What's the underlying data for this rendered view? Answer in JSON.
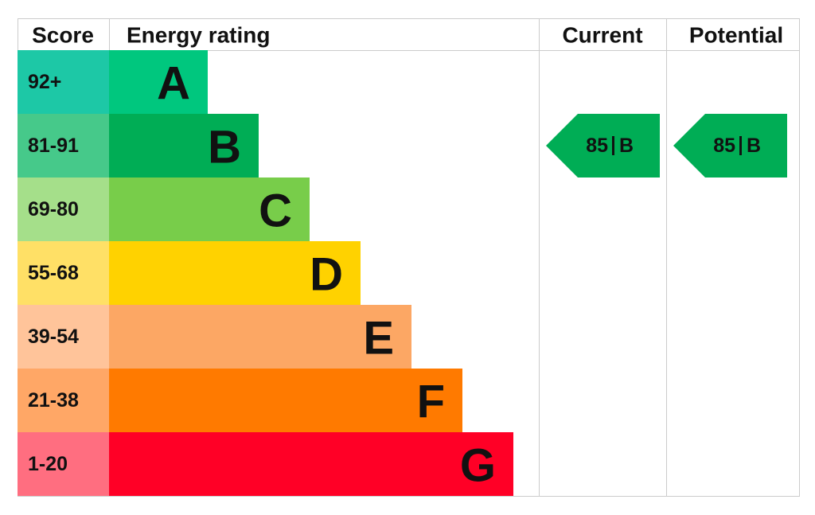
{
  "header": {
    "score": "Score",
    "rating": "Energy rating",
    "current": "Current",
    "potential": "Potential"
  },
  "bands": [
    {
      "score": "92+",
      "letter": "A",
      "color": "#00c77e",
      "score_color": "#1dc8a6"
    },
    {
      "score": "81-91",
      "letter": "B",
      "color": "#00ad55",
      "score_color": "#46c98a"
    },
    {
      "score": "69-80",
      "letter": "C",
      "color": "#78cd4a",
      "score_color": "#a5df8a"
    },
    {
      "score": "55-68",
      "letter": "D",
      "color": "#ffd200",
      "score_color": "#ffe066"
    },
    {
      "score": "39-54",
      "letter": "E",
      "color": "#fca764",
      "score_color": "#ffc49a"
    },
    {
      "score": "21-38",
      "letter": "F",
      "color": "#ff7a00",
      "score_color": "#ffa766"
    },
    {
      "score": "1-20",
      "letter": "G",
      "color": "#ff0026",
      "score_color": "#ff6e80"
    }
  ],
  "current": {
    "score": 85,
    "band": "B"
  },
  "potential": {
    "score": 85,
    "band": "B"
  }
}
